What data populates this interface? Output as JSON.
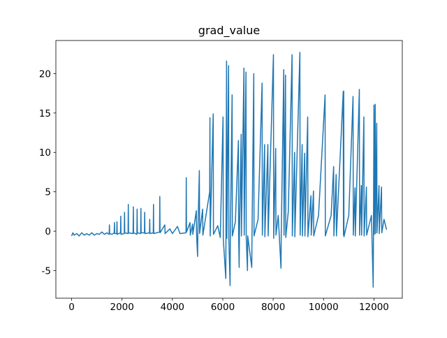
{
  "chart_data": {
    "type": "line",
    "title": "grad_value",
    "x": [
      0,
      50,
      100,
      200,
      300,
      400,
      500,
      600,
      700,
      800,
      900,
      1000,
      1100,
      1200,
      1300,
      1400,
      1490,
      1500,
      1510,
      1600,
      1690,
      1700,
      1710,
      1790,
      1800,
      1810,
      1940,
      1950,
      1960,
      2090,
      2100,
      2110,
      2240,
      2250,
      2260,
      2440,
      2450,
      2460,
      2590,
      2600,
      2610,
      2740,
      2750,
      2760,
      2890,
      2900,
      2910,
      3090,
      3100,
      3110,
      3240,
      3250,
      3260,
      3490,
      3500,
      3510,
      3700,
      3710,
      3900,
      4000,
      4200,
      4300,
      4540,
      4550,
      4560,
      4700,
      4710,
      4800,
      4810,
      4950,
      4960,
      5000,
      5010,
      5070,
      5080,
      5200,
      5210,
      5480,
      5490,
      5500,
      5620,
      5630,
      5800,
      5900,
      6010,
      6020,
      6120,
      6150,
      6160,
      6230,
      6240,
      6290,
      6300,
      6370,
      6380,
      6500,
      6620,
      6630,
      6650,
      6660,
      6730,
      6740,
      6840,
      6850,
      6920,
      6930,
      6980,
      6990,
      7150,
      7160,
      7230,
      7240,
      7400,
      7560,
      7570,
      7660,
      7670,
      7790,
      7800,
      8010,
      8020,
      8100,
      8110,
      8200,
      8310,
      8320,
      8420,
      8430,
      8490,
      8500,
      8600,
      8750,
      8760,
      8850,
      8860,
      9060,
      9070,
      9150,
      9160,
      9250,
      9260,
      9370,
      9380,
      9500,
      9510,
      9600,
      9610,
      9800,
      10060,
      10070,
      10300,
      10400,
      10410,
      10500,
      10510,
      10780,
      10790,
      10800,
      10810,
      11000,
      11170,
      11180,
      11250,
      11260,
      11420,
      11430,
      11500,
      11510,
      11600,
      11610,
      11700,
      11710,
      11900,
      11970,
      11980,
      12000,
      12010,
      12050,
      12060,
      12110,
      12120,
      12200,
      12210,
      12300,
      12310,
      12400,
      12500
    ],
    "series": [
      {
        "name": "grad_value",
        "color": "#1f77b4",
        "values": [
          -0.6,
          -0.2,
          -0.5,
          -0.3,
          -0.6,
          -0.2,
          -0.5,
          -0.3,
          -0.5,
          -0.2,
          -0.5,
          -0.3,
          -0.4,
          -0.1,
          -0.4,
          -0.2,
          -0.4,
          0.8,
          -0.3,
          -0.4,
          -0.2,
          1.1,
          -0.3,
          -0.3,
          1.2,
          -0.4,
          -0.2,
          1.9,
          -0.4,
          -0.3,
          2.4,
          -0.2,
          -0.3,
          3.4,
          -0.2,
          -0.3,
          3.1,
          -0.2,
          -0.4,
          2.8,
          -0.2,
          -0.3,
          2.9,
          -0.2,
          -0.2,
          2.4,
          -0.3,
          -0.2,
          1.5,
          -0.3,
          -0.2,
          3.4,
          -0.3,
          -0.1,
          4.4,
          -0.2,
          0.8,
          -0.3,
          0.3,
          -0.3,
          0.6,
          -0.3,
          -0.2,
          6.8,
          -0.1,
          1.1,
          -0.5,
          0.9,
          -0.4,
          2.6,
          -0.5,
          -3.2,
          -0.4,
          7.7,
          -0.3,
          2.8,
          -0.5,
          5.0,
          14.4,
          -0.6,
          14.9,
          -0.4,
          0.7,
          -0.8,
          14.5,
          -1.0,
          -6.0,
          21.6,
          -0.9,
          21.0,
          -1.0,
          -6.9,
          -0.8,
          17.3,
          -0.6,
          1.2,
          11.5,
          -0.8,
          -4.6,
          -0.5,
          12.3,
          -0.6,
          20.7,
          -0.5,
          20.2,
          -0.8,
          -5.0,
          -0.6,
          -4.6,
          -0.4,
          20.0,
          -0.6,
          1.5,
          18.8,
          -0.5,
          11.0,
          -0.7,
          11.0,
          -0.6,
          22.4,
          -0.9,
          10.5,
          -0.5,
          2.0,
          -4.7,
          -0.6,
          20.5,
          -0.5,
          19.8,
          -0.8,
          2.5,
          22.4,
          -0.6,
          10.0,
          -0.7,
          22.7,
          -0.5,
          11.0,
          -0.6,
          9.9,
          -0.6,
          14.5,
          -0.7,
          4.5,
          -0.5,
          5.1,
          -0.6,
          2.0,
          17.3,
          -0.6,
          2.0,
          8.2,
          -0.6,
          7.2,
          -0.6,
          17.7,
          -0.5,
          17.8,
          -0.7,
          2.0,
          17.1,
          -0.5,
          5.5,
          -0.6,
          18.0,
          -0.5,
          5.8,
          -0.5,
          14.5,
          -0.6,
          5.6,
          -0.5,
          2.0,
          -7.1,
          -0.5,
          16.0,
          -0.4,
          16.1,
          -0.3,
          13.7,
          -0.2,
          5.8,
          -0.3,
          5.6,
          -0.2,
          1.5,
          0.2
        ]
      }
    ],
    "xlim": [
      -625,
      13125
    ],
    "ylim": [
      -8.5,
      24.2
    ],
    "xticks": [
      0,
      2000,
      4000,
      6000,
      8000,
      10000,
      12000
    ],
    "yticks": [
      -5,
      0,
      5,
      10,
      15,
      20
    ]
  }
}
